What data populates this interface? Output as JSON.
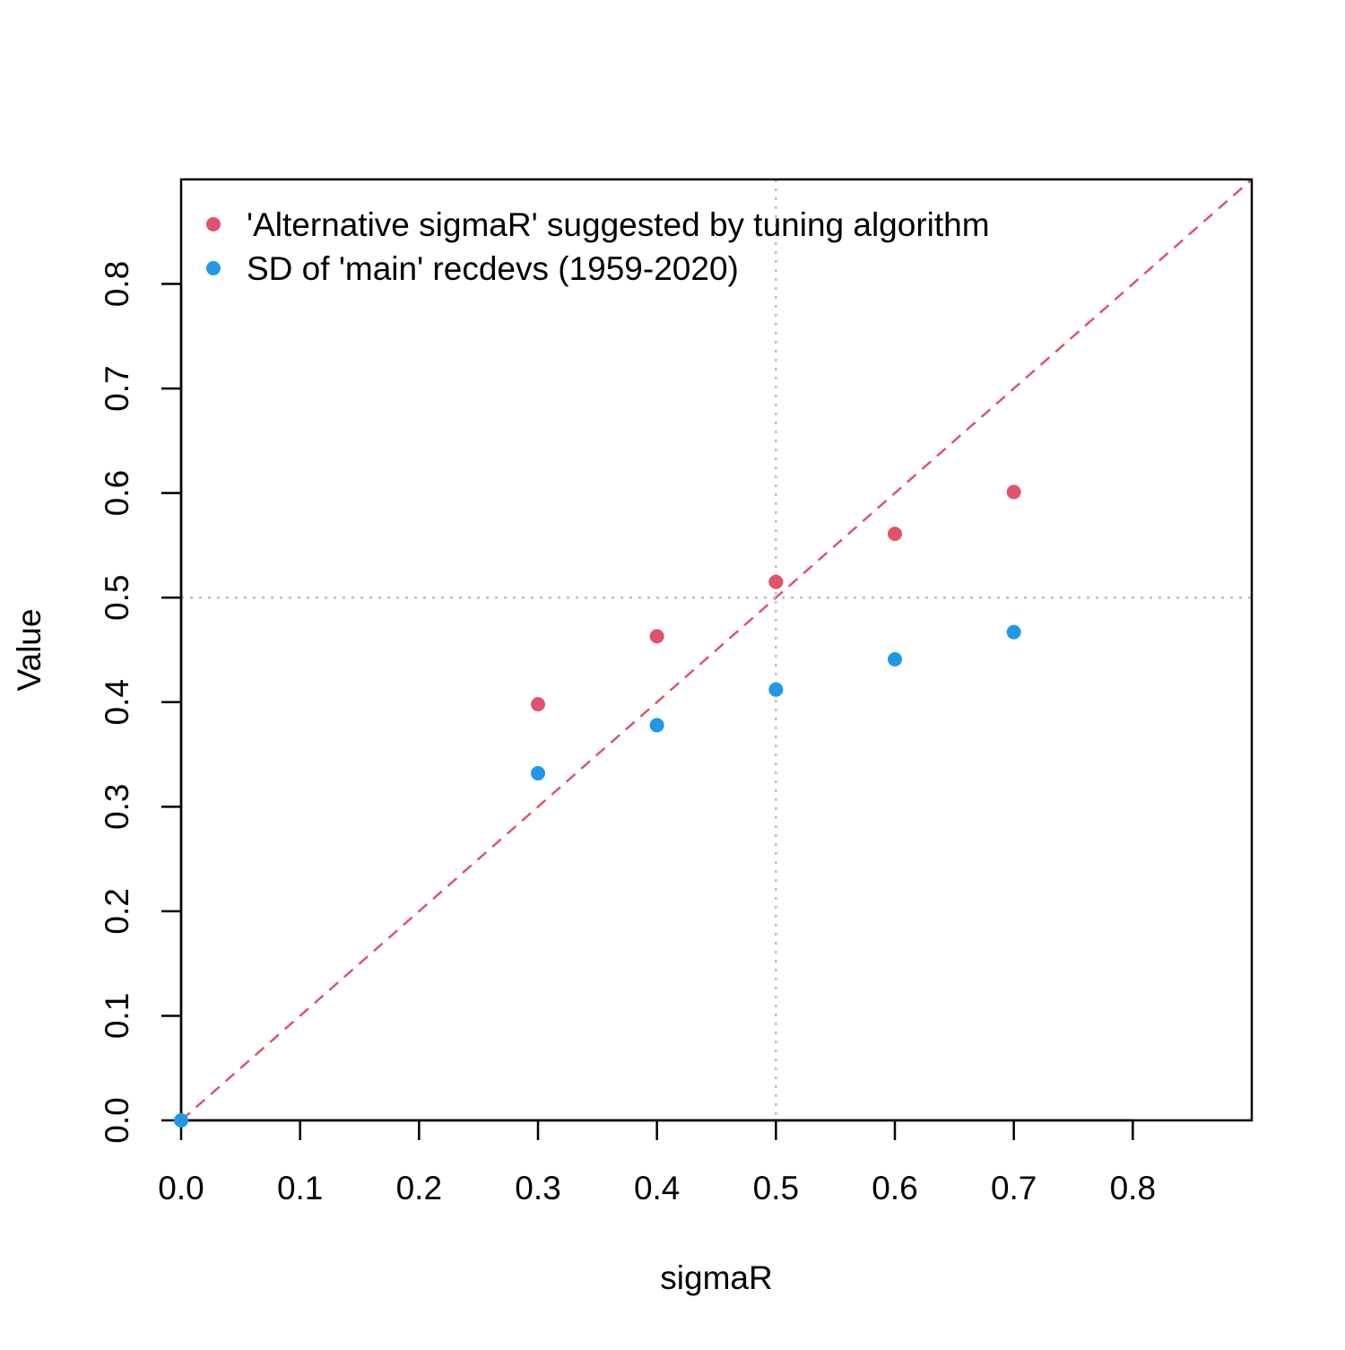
{
  "chart_data": {
    "type": "scatter",
    "title": "",
    "xlabel": "sigmaR",
    "ylabel": "Value",
    "xlim": [
      0,
      0.9
    ],
    "ylim": [
      0,
      0.9
    ],
    "xticks": [
      "0.0",
      "0.1",
      "0.2",
      "0.3",
      "0.4",
      "0.5",
      "0.6",
      "0.7",
      "0.8"
    ],
    "yticks": [
      "0.0",
      "0.1",
      "0.2",
      "0.3",
      "0.4",
      "0.5",
      "0.6",
      "0.7",
      "0.8"
    ],
    "legend_position": "top-left",
    "series": [
      {
        "name": "'Alternative sigmaR' suggested by tuning algorithm",
        "color": "#DF536B",
        "x": [
          0.3,
          0.4,
          0.5,
          0.6,
          0.7
        ],
        "y": [
          0.398,
          0.463,
          0.515,
          0.561,
          0.601
        ]
      },
      {
        "name": "SD of 'main' recdevs (1959-2020)",
        "color": "#2297E6",
        "x": [
          0.0,
          0.3,
          0.4,
          0.5,
          0.6,
          0.7
        ],
        "y": [
          0.0,
          0.332,
          0.378,
          0.412,
          0.441,
          0.467
        ]
      }
    ],
    "reference_lines": [
      {
        "kind": "identity",
        "style": "dashed",
        "color": "#DF536B"
      },
      {
        "kind": "vertical",
        "value": 0.5,
        "style": "dotted",
        "color": "#BEBEBE"
      },
      {
        "kind": "horizontal",
        "value": 0.5,
        "style": "dotted",
        "color": "#BEBEBE"
      }
    ]
  }
}
